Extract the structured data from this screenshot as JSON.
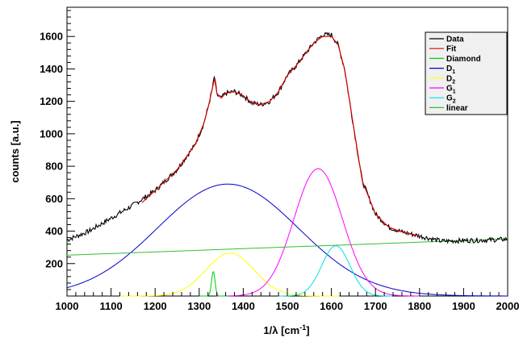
{
  "chart_data": {
    "type": "line",
    "title": "",
    "xlabel": "1/λ [cm⁻¹]",
    "xlabel_base": "1/λ [cm",
    "xlabel_sup": "-1",
    "xlabel_end": "]",
    "ylabel": "counts [a.u.]",
    "xlim": [
      1000,
      2000
    ],
    "ylim": [
      0,
      1780
    ],
    "x_ticks": [
      1000,
      1100,
      1200,
      1300,
      1400,
      1500,
      1600,
      1700,
      1800,
      1900,
      2000
    ],
    "y_ticks": [
      200,
      400,
      600,
      800,
      1000,
      1200,
      1400,
      1600
    ],
    "grid": false,
    "legend_position": "top-right",
    "series": [
      {
        "name": "Data",
        "label_base": "Data",
        "label_sub": "",
        "color": "#000000",
        "kind": "data",
        "x": [
          1000,
          1050,
          1100,
          1150,
          1200,
          1250,
          1290,
          1310,
          1320,
          1330,
          1335,
          1340,
          1350,
          1360,
          1380,
          1400,
          1420,
          1440,
          1460,
          1480,
          1500,
          1520,
          1540,
          1560,
          1580,
          1600,
          1615,
          1630,
          1650,
          1670,
          1700,
          1730,
          1760,
          1800,
          1850,
          1900,
          1950,
          2000
        ],
        "y": [
          345,
          400,
          480,
          560,
          650,
          780,
          930,
          1060,
          1160,
          1280,
          1360,
          1240,
          1220,
          1250,
          1260,
          1235,
          1190,
          1180,
          1200,
          1260,
          1360,
          1420,
          1490,
          1560,
          1610,
          1610,
          1550,
          1400,
          1050,
          710,
          505,
          425,
          395,
          370,
          338,
          342,
          345,
          350
        ]
      },
      {
        "name": "Fit",
        "label_base": "Fit",
        "label_sub": "",
        "color": "#e00000",
        "kind": "fit",
        "x": [
          1170,
          1200,
          1250,
          1290,
          1310,
          1320,
          1330,
          1335,
          1340,
          1350,
          1360,
          1380,
          1400,
          1420,
          1440,
          1460,
          1480,
          1500,
          1520,
          1540,
          1560,
          1580,
          1600,
          1615,
          1630,
          1650,
          1670,
          1700,
          1730,
          1760,
          1800
        ],
        "y": [
          575,
          650,
          780,
          930,
          1060,
          1160,
          1280,
          1340,
          1250,
          1220,
          1250,
          1260,
          1235,
          1190,
          1180,
          1200,
          1260,
          1360,
          1420,
          1490,
          1560,
          1600,
          1600,
          1550,
          1400,
          1050,
          710,
          505,
          425,
          395,
          370
        ]
      },
      {
        "name": "Diamond",
        "label_base": "Diamond",
        "label_sub": "",
        "color": "#00d000",
        "kind": "gauss",
        "center": 1332,
        "amp": 150,
        "sigma": 4,
        "range": [
          1300,
          1365
        ]
      },
      {
        "name": "D1",
        "label_base": "D",
        "label_sub": "1",
        "color": "#0000d0",
        "kind": "gauss",
        "center": 1365,
        "amp": 690,
        "sigma": 160,
        "range": [
          1000,
          2000
        ]
      },
      {
        "name": "D2",
        "label_base": "D",
        "label_sub": "2",
        "color": "#ffff00",
        "kind": "gauss",
        "center": 1370,
        "amp": 265,
        "sigma": 55,
        "range": [
          1120,
          1620
        ]
      },
      {
        "name": "G1",
        "label_base": "G",
        "label_sub": "1",
        "color": "#ff00ff",
        "kind": "gauss",
        "center": 1570,
        "amp": 785,
        "sigma": 55,
        "range": [
          1340,
          1800
        ]
      },
      {
        "name": "G2",
        "label_base": "G",
        "label_sub": "2",
        "color": "#00e0e0",
        "kind": "gauss",
        "center": 1610,
        "amp": 310,
        "sigma": 32,
        "range": [
          1480,
          1740
        ]
      },
      {
        "name": "linear",
        "label_base": "linear",
        "label_sub": "",
        "color": "#30c030",
        "kind": "line",
        "x": [
          1000,
          2000
        ],
        "y": [
          252,
          352
        ]
      }
    ]
  }
}
